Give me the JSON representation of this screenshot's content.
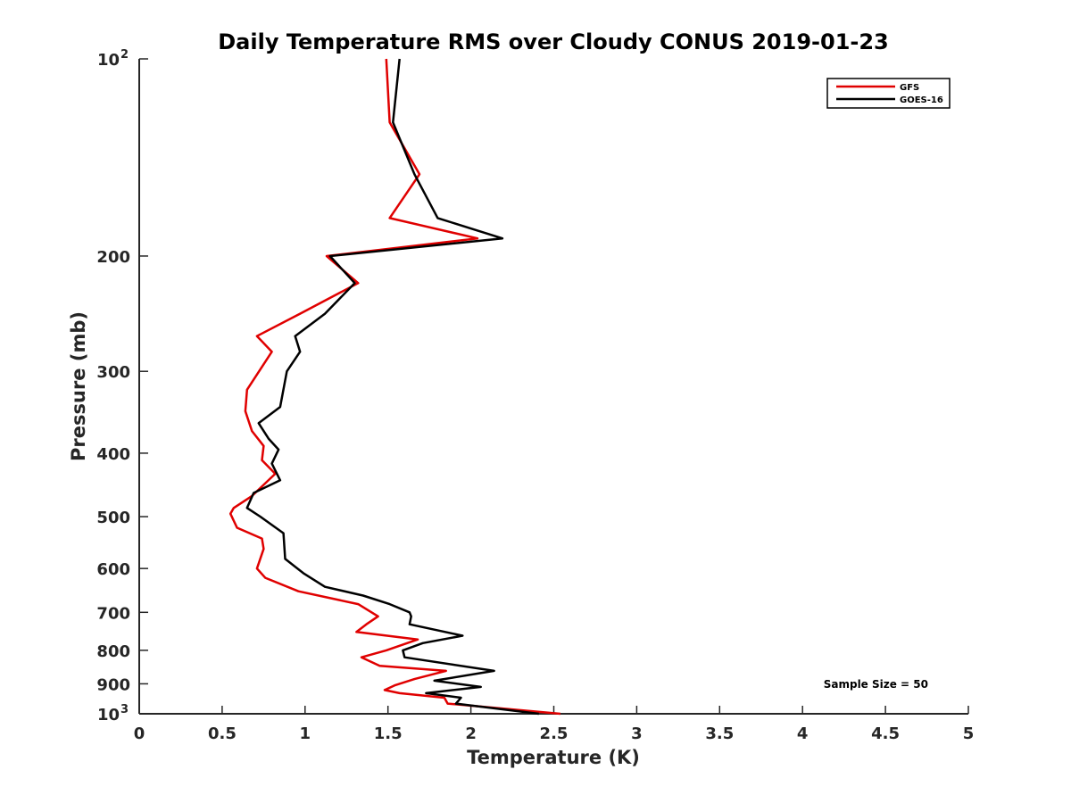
{
  "chart_data": {
    "type": "line",
    "title": "Daily Temperature RMS over Cloudy CONUS 2019-01-23",
    "xlabel": "Temperature (K)",
    "ylabel": "Pressure (mb)",
    "xlim": [
      0,
      5
    ],
    "ylim": [
      100,
      1000
    ],
    "y_scale": "log",
    "y_reversed": true,
    "grid": false,
    "legend_position": "top-right",
    "x_ticks": [
      {
        "value": 0,
        "label": "0"
      },
      {
        "value": 0.5,
        "label": "0.5"
      },
      {
        "value": 1,
        "label": "1"
      },
      {
        "value": 1.5,
        "label": "1.5"
      },
      {
        "value": 2,
        "label": "2"
      },
      {
        "value": 2.5,
        "label": "2.5"
      },
      {
        "value": 3,
        "label": "3"
      },
      {
        "value": 3.5,
        "label": "3.5"
      },
      {
        "value": 4,
        "label": "4"
      },
      {
        "value": 4.5,
        "label": "4.5"
      },
      {
        "value": 5,
        "label": "5"
      }
    ],
    "y_ticks": [
      {
        "value": 100,
        "label": "10",
        "exp": "2"
      },
      {
        "value": 200,
        "label": "200"
      },
      {
        "value": 300,
        "label": "300"
      },
      {
        "value": 400,
        "label": "400"
      },
      {
        "value": 500,
        "label": "500"
      },
      {
        "value": 600,
        "label": "600"
      },
      {
        "value": 700,
        "label": "700"
      },
      {
        "value": 800,
        "label": "800"
      },
      {
        "value": 900,
        "label": "900"
      },
      {
        "value": 1000,
        "label": "10",
        "exp": "3"
      }
    ],
    "annotation": "Sample Size = 50",
    "series": [
      {
        "name": "GFS",
        "color": "#e00000",
        "points": [
          [
            1.49,
            100
          ],
          [
            1.51,
            125
          ],
          [
            1.69,
            150
          ],
          [
            1.51,
            175
          ],
          [
            2.04,
            188
          ],
          [
            1.13,
            200
          ],
          [
            1.32,
            220
          ],
          [
            0.97,
            245
          ],
          [
            0.71,
            265
          ],
          [
            0.8,
            280
          ],
          [
            0.65,
            320
          ],
          [
            0.64,
            345
          ],
          [
            0.68,
            370
          ],
          [
            0.75,
            390
          ],
          [
            0.74,
            410
          ],
          [
            0.82,
            430
          ],
          [
            0.68,
            465
          ],
          [
            0.57,
            485
          ],
          [
            0.55,
            495
          ],
          [
            0.59,
            520
          ],
          [
            0.74,
            540
          ],
          [
            0.75,
            560
          ],
          [
            0.71,
            600
          ],
          [
            0.76,
            620
          ],
          [
            0.96,
            650
          ],
          [
            1.32,
            680
          ],
          [
            1.44,
            710
          ],
          [
            1.37,
            730
          ],
          [
            1.31,
            750
          ],
          [
            1.68,
            770
          ],
          [
            1.49,
            800
          ],
          [
            1.34,
            820
          ],
          [
            1.45,
            845
          ],
          [
            1.85,
            860
          ],
          [
            1.66,
            885
          ],
          [
            1.54,
            905
          ],
          [
            1.48,
            920
          ],
          [
            1.57,
            930
          ],
          [
            1.84,
            945
          ],
          [
            1.86,
            965
          ],
          [
            2.54,
            1000
          ]
        ]
      },
      {
        "name": "GOES-16",
        "color": "#000000",
        "points": [
          [
            1.57,
            100
          ],
          [
            1.53,
            125
          ],
          [
            1.66,
            150
          ],
          [
            1.8,
            175
          ],
          [
            2.19,
            188
          ],
          [
            1.15,
            200
          ],
          [
            1.3,
            220
          ],
          [
            1.12,
            245
          ],
          [
            0.94,
            265
          ],
          [
            0.97,
            280
          ],
          [
            0.89,
            300
          ],
          [
            0.85,
            340
          ],
          [
            0.72,
            360
          ],
          [
            0.78,
            380
          ],
          [
            0.84,
            395
          ],
          [
            0.8,
            415
          ],
          [
            0.85,
            440
          ],
          [
            0.69,
            460
          ],
          [
            0.65,
            485
          ],
          [
            0.73,
            500
          ],
          [
            0.87,
            530
          ],
          [
            0.88,
            580
          ],
          [
            0.99,
            610
          ],
          [
            1.12,
            640
          ],
          [
            1.35,
            660
          ],
          [
            1.51,
            680
          ],
          [
            1.63,
            700
          ],
          [
            1.64,
            710
          ],
          [
            1.63,
            730
          ],
          [
            1.95,
            760
          ],
          [
            1.71,
            780
          ],
          [
            1.59,
            800
          ],
          [
            1.6,
            820
          ],
          [
            2.14,
            860
          ],
          [
            1.78,
            890
          ],
          [
            2.06,
            910
          ],
          [
            1.73,
            930
          ],
          [
            1.94,
            945
          ],
          [
            1.91,
            965
          ],
          [
            2.41,
            1000
          ]
        ]
      }
    ]
  }
}
